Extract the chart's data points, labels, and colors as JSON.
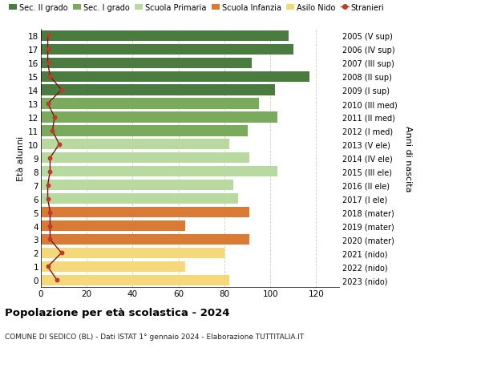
{
  "ages": [
    18,
    17,
    16,
    15,
    14,
    13,
    12,
    11,
    10,
    9,
    8,
    7,
    6,
    5,
    4,
    3,
    2,
    1,
    0
  ],
  "right_labels": [
    "2005 (V sup)",
    "2006 (IV sup)",
    "2007 (III sup)",
    "2008 (II sup)",
    "2009 (I sup)",
    "2010 (III med)",
    "2011 (II med)",
    "2012 (I med)",
    "2013 (V ele)",
    "2014 (IV ele)",
    "2015 (III ele)",
    "2016 (II ele)",
    "2017 (I ele)",
    "2018 (mater)",
    "2019 (mater)",
    "2020 (mater)",
    "2021 (nido)",
    "2022 (nido)",
    "2023 (nido)"
  ],
  "bar_values": [
    108,
    110,
    92,
    117,
    102,
    95,
    103,
    90,
    82,
    91,
    103,
    84,
    86,
    91,
    63,
    91,
    80,
    63,
    82
  ],
  "bar_colors": [
    "#4a7c3f",
    "#4a7c3f",
    "#4a7c3f",
    "#4a7c3f",
    "#4a7c3f",
    "#7aab5c",
    "#7aab5c",
    "#7aab5c",
    "#b8d9a0",
    "#b8d9a0",
    "#b8d9a0",
    "#b8d9a0",
    "#b8d9a0",
    "#d97b35",
    "#d97b35",
    "#d97b35",
    "#f5d87a",
    "#f5d87a",
    "#f5d87a"
  ],
  "stranieri_values": [
    3,
    3,
    3,
    4,
    9,
    3,
    6,
    5,
    8,
    4,
    4,
    3,
    3,
    4,
    4,
    4,
    9,
    3,
    7
  ],
  "legend_labels": [
    "Sec. II grado",
    "Sec. I grado",
    "Scuola Primaria",
    "Scuola Infanzia",
    "Asilo Nido",
    "Stranieri"
  ],
  "legend_colors": [
    "#4a7c3f",
    "#7aab5c",
    "#b8d9a0",
    "#d97b35",
    "#f5d87a",
    "#c0392b"
  ],
  "ylabel_left": "Età alunni",
  "ylabel_right": "Anni di nascita",
  "title": "Popolazione per età scolastica - 2024",
  "subtitle": "COMUNE DI SEDICO (BL) - Dati ISTAT 1° gennaio 2024 - Elaborazione TUTTITALIA.IT",
  "xlim": [
    0,
    130
  ],
  "background_color": "#ffffff",
  "bar_height": 0.78,
  "grid_color": "#cccccc"
}
